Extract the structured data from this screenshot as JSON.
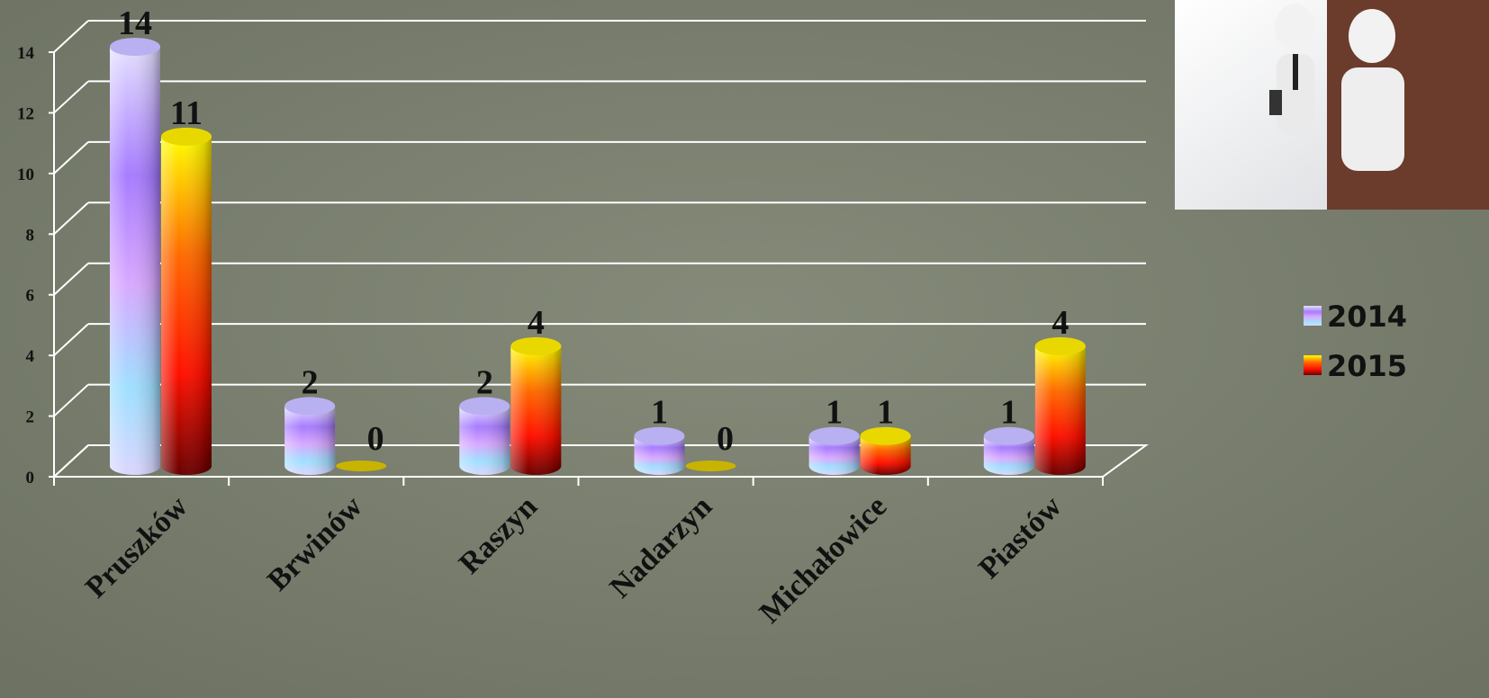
{
  "chart_data": {
    "type": "bar",
    "categories": [
      "Pruszków",
      "Brwinów",
      "Raszyn",
      "Nadarzyn",
      "Michałowice",
      "Piastów"
    ],
    "series": [
      {
        "name": "2014",
        "color": "#a77cff",
        "values": [
          14,
          2,
          2,
          1,
          1,
          1
        ]
      },
      {
        "name": "2015",
        "color": "#ff6a00",
        "values": [
          11,
          0,
          4,
          0,
          1,
          4
        ]
      }
    ],
    "ylim": [
      0,
      14
    ],
    "yticks": [
      0,
      2,
      4,
      6,
      8,
      10,
      12,
      14
    ],
    "grid": true,
    "legend": "right"
  }
}
